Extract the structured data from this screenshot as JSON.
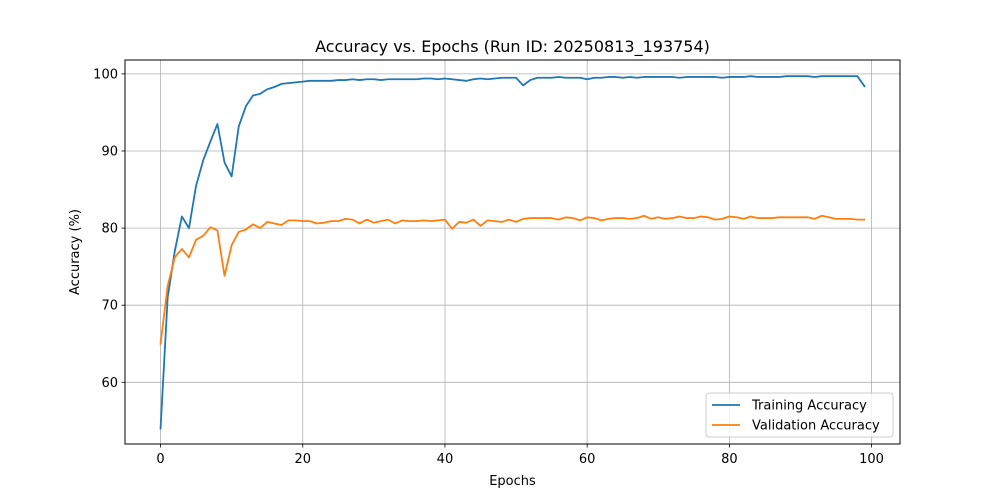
{
  "chart_data": {
    "type": "line",
    "title": "Accuracy vs. Epochs (Run ID: 20250813_193754)",
    "xlabel": "Epochs",
    "ylabel": "Accuracy (%)",
    "xlim": [
      -5,
      104
    ],
    "ylim": [
      52,
      101.8
    ],
    "xticks": [
      0,
      20,
      40,
      60,
      80,
      100
    ],
    "yticks": [
      60,
      70,
      80,
      90,
      100
    ],
    "grid": true,
    "legend_position": "lower-right",
    "series": [
      {
        "name": "Training Accuracy",
        "color": "#1f77b4",
        "x": [
          0,
          1,
          2,
          3,
          4,
          5,
          6,
          7,
          8,
          9,
          10,
          11,
          12,
          13,
          14,
          15,
          16,
          17,
          18,
          19,
          20,
          21,
          22,
          23,
          24,
          25,
          26,
          27,
          28,
          29,
          30,
          31,
          32,
          33,
          34,
          35,
          36,
          37,
          38,
          39,
          40,
          41,
          42,
          43,
          44,
          45,
          46,
          47,
          48,
          49,
          50,
          51,
          52,
          53,
          54,
          55,
          56,
          57,
          58,
          59,
          60,
          61,
          62,
          63,
          64,
          65,
          66,
          67,
          68,
          69,
          70,
          71,
          72,
          73,
          74,
          75,
          76,
          77,
          78,
          79,
          80,
          81,
          82,
          83,
          84,
          85,
          86,
          87,
          88,
          89,
          90,
          91,
          92,
          93,
          94,
          95,
          96,
          97,
          98,
          99
        ],
        "values": [
          54.0,
          71.0,
          77.0,
          81.5,
          80.0,
          85.5,
          88.8,
          91.2,
          93.5,
          88.5,
          86.7,
          93.2,
          95.8,
          97.2,
          97.4,
          98.0,
          98.3,
          98.7,
          98.8,
          98.9,
          99.0,
          99.1,
          99.1,
          99.1,
          99.1,
          99.2,
          99.2,
          99.3,
          99.2,
          99.3,
          99.3,
          99.2,
          99.3,
          99.3,
          99.3,
          99.3,
          99.3,
          99.4,
          99.4,
          99.3,
          99.4,
          99.3,
          99.2,
          99.1,
          99.3,
          99.4,
          99.3,
          99.4,
          99.5,
          99.5,
          99.5,
          98.5,
          99.2,
          99.5,
          99.5,
          99.5,
          99.6,
          99.5,
          99.5,
          99.5,
          99.3,
          99.5,
          99.5,
          99.6,
          99.6,
          99.5,
          99.6,
          99.5,
          99.6,
          99.6,
          99.6,
          99.6,
          99.6,
          99.5,
          99.6,
          99.6,
          99.6,
          99.6,
          99.6,
          99.5,
          99.6,
          99.6,
          99.6,
          99.7,
          99.6,
          99.6,
          99.6,
          99.6,
          99.7,
          99.7,
          99.7,
          99.7,
          99.6,
          99.7,
          99.7,
          99.7,
          99.7,
          99.7,
          99.7,
          98.4
        ]
      },
      {
        "name": "Validation Accuracy",
        "color": "#ff7f0e",
        "x": [
          0,
          1,
          2,
          3,
          4,
          5,
          6,
          7,
          8,
          9,
          10,
          11,
          12,
          13,
          14,
          15,
          16,
          17,
          18,
          19,
          20,
          21,
          22,
          23,
          24,
          25,
          26,
          27,
          28,
          29,
          30,
          31,
          32,
          33,
          34,
          35,
          36,
          37,
          38,
          39,
          40,
          41,
          42,
          43,
          44,
          45,
          46,
          47,
          48,
          49,
          50,
          51,
          52,
          53,
          54,
          55,
          56,
          57,
          58,
          59,
          60,
          61,
          62,
          63,
          64,
          65,
          66,
          67,
          68,
          69,
          70,
          71,
          72,
          73,
          74,
          75,
          76,
          77,
          78,
          79,
          80,
          81,
          82,
          83,
          84,
          85,
          86,
          87,
          88,
          89,
          90,
          91,
          92,
          93,
          94,
          95,
          96,
          97,
          98,
          99
        ],
        "values": [
          65.0,
          72.5,
          76.2,
          77.3,
          76.2,
          78.5,
          79.0,
          80.1,
          79.7,
          73.8,
          77.8,
          79.5,
          79.8,
          80.5,
          80.0,
          80.8,
          80.6,
          80.4,
          81.0,
          81.0,
          80.9,
          80.9,
          80.6,
          80.7,
          80.9,
          80.9,
          81.2,
          81.1,
          80.6,
          81.1,
          80.7,
          80.9,
          81.1,
          80.6,
          81.0,
          80.9,
          80.9,
          81.0,
          80.9,
          81.0,
          81.1,
          79.9,
          80.8,
          80.7,
          81.1,
          80.3,
          81.0,
          80.9,
          80.8,
          81.1,
          80.8,
          81.2,
          81.3,
          81.3,
          81.3,
          81.3,
          81.1,
          81.4,
          81.3,
          81.0,
          81.4,
          81.3,
          81.0,
          81.2,
          81.3,
          81.3,
          81.2,
          81.3,
          81.6,
          81.2,
          81.4,
          81.2,
          81.3,
          81.5,
          81.3,
          81.3,
          81.5,
          81.4,
          81.1,
          81.2,
          81.5,
          81.4,
          81.2,
          81.5,
          81.3,
          81.3,
          81.3,
          81.4,
          81.4,
          81.4,
          81.4,
          81.4,
          81.2,
          81.6,
          81.4,
          81.2,
          81.2,
          81.2,
          81.1,
          81.1
        ]
      }
    ]
  }
}
